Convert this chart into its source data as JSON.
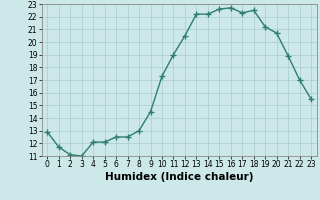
{
  "xlabel": "Humidex (Indice chaleur)",
  "x": [
    0,
    1,
    2,
    3,
    4,
    5,
    6,
    7,
    8,
    9,
    10,
    11,
    12,
    13,
    14,
    15,
    16,
    17,
    18,
    19,
    20,
    21,
    22,
    23
  ],
  "y": [
    12.9,
    11.7,
    11.1,
    11.0,
    12.1,
    12.1,
    12.5,
    12.5,
    13.0,
    14.5,
    17.3,
    19.0,
    20.5,
    22.2,
    22.2,
    22.6,
    22.7,
    22.3,
    22.5,
    21.2,
    20.7,
    18.9,
    17.0,
    15.5
  ],
  "line_color": "#2e7d6e",
  "marker": "+",
  "marker_size": 4,
  "line_width": 1.0,
  "background_color": "#cce8e8",
  "grid_color": "#aacccc",
  "ylim": [
    11,
    23
  ],
  "xlim": [
    -0.5,
    23.5
  ],
  "yticks": [
    11,
    12,
    13,
    14,
    15,
    16,
    17,
    18,
    19,
    20,
    21,
    22,
    23
  ],
  "xticks": [
    0,
    1,
    2,
    3,
    4,
    5,
    6,
    7,
    8,
    9,
    10,
    11,
    12,
    13,
    14,
    15,
    16,
    17,
    18,
    19,
    20,
    21,
    22,
    23
  ],
  "tick_fontsize": 5.5,
  "xlabel_fontsize": 7.5
}
